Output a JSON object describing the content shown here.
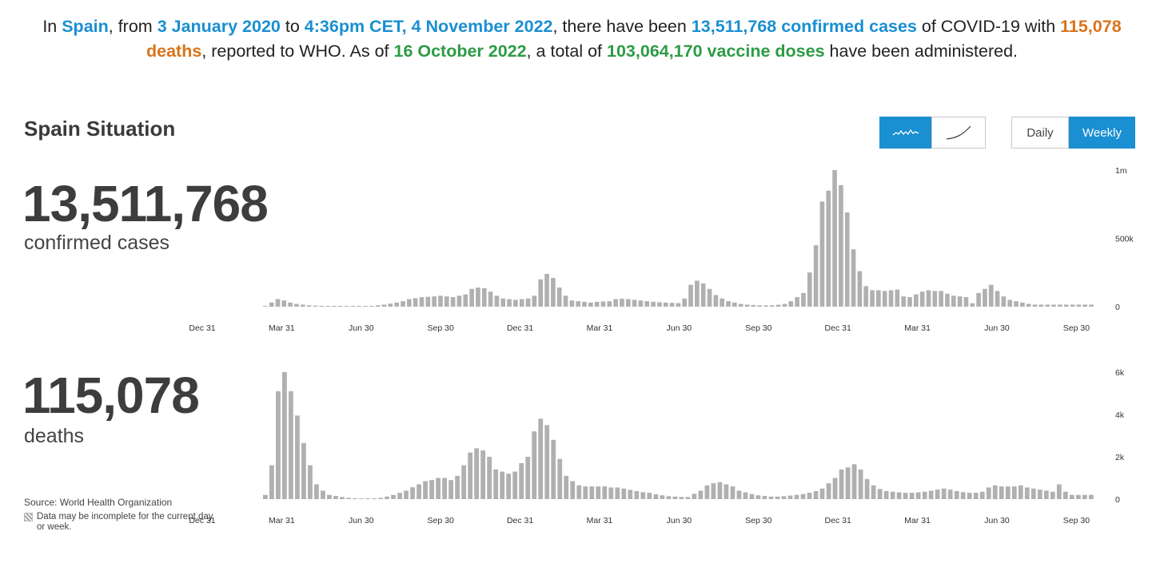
{
  "summary": {
    "p1": "In ",
    "country": "Spain",
    "p2": ", from ",
    "start_date": "3 January 2020",
    "p3": " to ",
    "end_date": "4:36pm CET, 4 November 2022",
    "p4": ", there have been ",
    "cases_text": "13,511,768 confirmed cases",
    "p5": " of COVID-19 with ",
    "deaths_text": "115,078 deaths",
    "p6": ", reported to WHO. As of ",
    "vaccine_date": "16 October 2022",
    "p7": ", a total of ",
    "vaccine_text": "103,064,170 vaccine doses",
    "p8": " have been administered."
  },
  "header": {
    "title": "Spain Situation",
    "toggle_chart_type": [
      {
        "icon": "wave-chart-icon",
        "active": true
      },
      {
        "icon": "curve-chart-icon",
        "active": false
      }
    ],
    "toggle_period": [
      {
        "label": "Daily",
        "active": false
      },
      {
        "label": "Weekly",
        "active": true
      }
    ]
  },
  "stats": {
    "cases_value": "13,511,768",
    "cases_label": "confirmed cases",
    "deaths_value": "115,078",
    "deaths_label": "deaths"
  },
  "footer": {
    "source": "Source: World Health Organization",
    "note": "Data may be incomplete for the current day or week."
  },
  "colors": {
    "accent": "#1a8fd1",
    "deaths": "#d9731a",
    "vaccine": "#2d9b45",
    "bar": "#b0b0b0"
  },
  "chart_data": [
    {
      "type": "bar",
      "name": "confirmed-cases-weekly",
      "x_tick_labels": [
        "Dec 31",
        "Mar 31",
        "Jun 30",
        "Sep 30",
        "Dec 31",
        "Mar 31",
        "Jun 30",
        "Sep 30",
        "Dec 31",
        "Mar 31",
        "Jun 30",
        "Sep 30"
      ],
      "y_tick_labels": [
        "1m",
        "500k",
        "0"
      ],
      "ylim": [
        0,
        1000000
      ],
      "values": [
        5000,
        30000,
        55000,
        45000,
        30000,
        20000,
        15000,
        10000,
        8000,
        6000,
        5000,
        4000,
        3000,
        3000,
        3000,
        3000,
        4000,
        6000,
        10000,
        15000,
        22000,
        30000,
        40000,
        55000,
        62000,
        70000,
        72000,
        75000,
        80000,
        75000,
        70000,
        80000,
        90000,
        130000,
        140000,
        135000,
        110000,
        80000,
        60000,
        55000,
        50000,
        55000,
        60000,
        80000,
        200000,
        240000,
        210000,
        140000,
        80000,
        45000,
        40000,
        35000,
        30000,
        35000,
        38000,
        40000,
        55000,
        58000,
        55000,
        50000,
        45000,
        40000,
        36000,
        32000,
        30000,
        28000,
        26000,
        60000,
        160000,
        190000,
        170000,
        130000,
        85000,
        60000,
        40000,
        30000,
        20000,
        15000,
        12000,
        10000,
        9000,
        10000,
        14000,
        20000,
        40000,
        70000,
        100000,
        250000,
        450000,
        770000,
        850000,
        1000000,
        890000,
        690000,
        420000,
        260000,
        150000,
        120000,
        120000,
        115000,
        120000,
        125000,
        75000,
        70000,
        90000,
        110000,
        120000,
        115000,
        115000,
        95000,
        80000,
        75000,
        70000,
        25000,
        100000,
        130000,
        160000,
        115000,
        75000,
        50000,
        40000,
        30000,
        20000,
        15000,
        15000,
        15000,
        15000,
        15000,
        15000,
        15000,
        15000,
        15000,
        15000
      ]
    },
    {
      "type": "bar",
      "name": "deaths-weekly",
      "x_tick_labels": [
        "Dec 31",
        "Mar 31",
        "Jun 30",
        "Sep 30",
        "Dec 31",
        "Mar 31",
        "Jun 30",
        "Sep 30",
        "Dec 31",
        "Mar 31",
        "Jun 30",
        "Sep 30"
      ],
      "y_tick_labels": [
        "6k",
        "4k",
        "2k",
        "0"
      ],
      "ylim": [
        0,
        6000
      ],
      "values": [
        200,
        1600,
        5100,
        6000,
        5100,
        3950,
        2650,
        1600,
        700,
        400,
        200,
        150,
        100,
        60,
        30,
        20,
        20,
        30,
        60,
        120,
        200,
        300,
        400,
        560,
        700,
        850,
        900,
        1000,
        1000,
        900,
        1100,
        1600,
        2200,
        2400,
        2300,
        2000,
        1400,
        1300,
        1200,
        1300,
        1700,
        2000,
        3200,
        3800,
        3500,
        2800,
        1900,
        1100,
        850,
        650,
        600,
        600,
        600,
        600,
        550,
        550,
        500,
        440,
        380,
        330,
        300,
        230,
        180,
        140,
        120,
        100,
        100,
        250,
        400,
        650,
        750,
        800,
        700,
        600,
        400,
        320,
        240,
        180,
        150,
        120,
        120,
        140,
        170,
        200,
        240,
        300,
        380,
        500,
        750,
        1000,
        1400,
        1500,
        1650,
        1400,
        950,
        650,
        480,
        380,
        350,
        320,
        300,
        300,
        320,
        350,
        400,
        450,
        500,
        450,
        380,
        330,
        300,
        300,
        350,
        550,
        650,
        600,
        600,
        600,
        650,
        550,
        500,
        450,
        400,
        350,
        700,
        350,
        200,
        200,
        200,
        200
      ]
    }
  ]
}
